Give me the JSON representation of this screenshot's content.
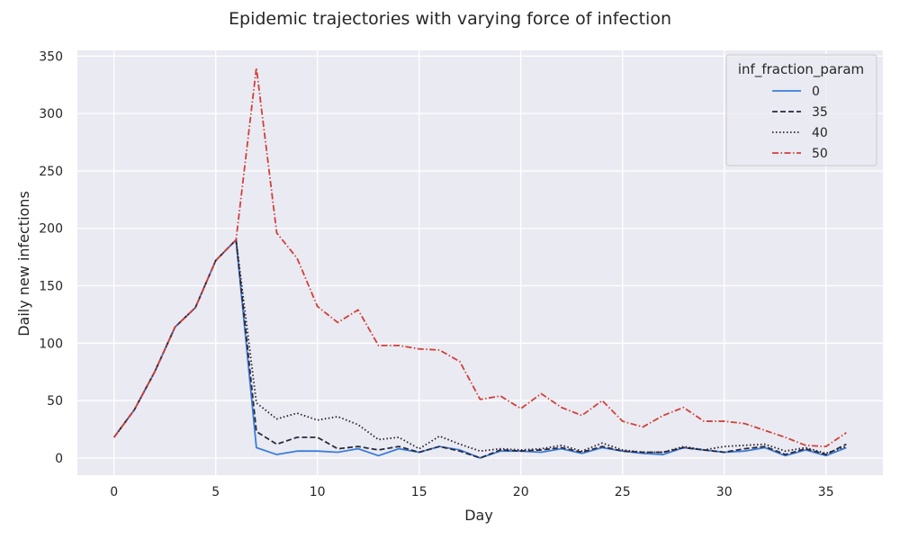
{
  "chart_data": {
    "type": "line",
    "title": "Epidemic trajectories with varying force of infection",
    "xlabel": "Day",
    "ylabel": "Daily new infections",
    "xlim": [
      -1.8,
      37.8
    ],
    "ylim": [
      -15,
      355
    ],
    "xticks": [
      0,
      5,
      10,
      15,
      20,
      25,
      30,
      35
    ],
    "yticks": [
      0,
      50,
      100,
      150,
      200,
      250,
      300,
      350
    ],
    "grid": true,
    "background": "#eaeaf2",
    "legend": {
      "title": "inf_fraction_param",
      "placement": "top-right"
    },
    "x": [
      0,
      1,
      2,
      3,
      4,
      5,
      6,
      7,
      8,
      9,
      10,
      11,
      12,
      13,
      14,
      15,
      16,
      17,
      18,
      19,
      20,
      21,
      22,
      23,
      24,
      25,
      26,
      27,
      28,
      29,
      30,
      31,
      32,
      33,
      34,
      35,
      36
    ],
    "series": [
      {
        "name": "0",
        "color": "#3b7dd8",
        "dash": "solid",
        "values": [
          18,
          42,
          75,
          114,
          131,
          172,
          190,
          9,
          3,
          6,
          6,
          5,
          8,
          2,
          8,
          5,
          10,
          7,
          0,
          6,
          6,
          5,
          8,
          4,
          9,
          6,
          4,
          3,
          9,
          7,
          5,
          6,
          9,
          2,
          7,
          2,
          9
        ]
      },
      {
        "name": "35",
        "color": "#2a2a3e",
        "dash": "dashed",
        "values": [
          18,
          42,
          75,
          114,
          131,
          172,
          190,
          23,
          12,
          18,
          18,
          8,
          10,
          7,
          10,
          5,
          10,
          6,
          0,
          7,
          6,
          7,
          9,
          5,
          10,
          6,
          5,
          5,
          9,
          7,
          5,
          8,
          10,
          3,
          8,
          3,
          12
        ]
      },
      {
        "name": "40",
        "color": "#2a1e2e",
        "dash": "dotted",
        "values": [
          18,
          42,
          75,
          114,
          131,
          172,
          190,
          48,
          34,
          39,
          33,
          36,
          29,
          16,
          18,
          8,
          19,
          12,
          6,
          8,
          7,
          8,
          11,
          6,
          13,
          7,
          5,
          5,
          10,
          7,
          10,
          11,
          12,
          6,
          9,
          4,
          10
        ]
      },
      {
        "name": "50",
        "color": "#d0413a",
        "dash": "dashdot",
        "values": [
          18,
          42,
          75,
          114,
          131,
          172,
          190,
          340,
          196,
          174,
          132,
          118,
          129,
          98,
          98,
          95,
          94,
          84,
          51,
          54,
          43,
          56,
          44,
          37,
          50,
          32,
          27,
          37,
          44,
          32,
          32,
          30,
          24,
          18,
          11,
          10,
          22
        ]
      }
    ]
  }
}
